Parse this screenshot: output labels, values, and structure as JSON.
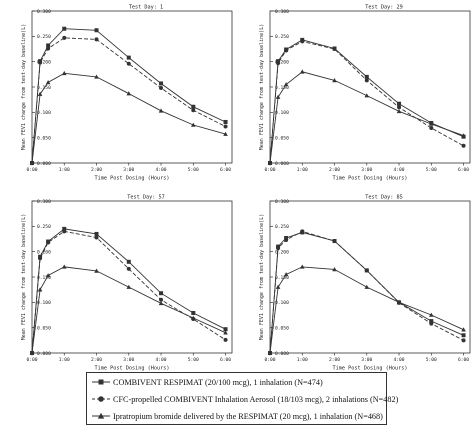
{
  "chart_data": [
    {
      "type": "line",
      "title": "Test Day: 1",
      "xlabel": "Time Post Dosing (Hours)",
      "ylabel": "Mean FEV1 change from test-day baseline(L)",
      "x_tick_labels": [
        "0:00",
        "1:00",
        "2:00",
        "3:00",
        "4:00",
        "5:00",
        "6:00"
      ],
      "y_tick_labels": [
        "0.000",
        "0.050",
        "0.100",
        "0.150",
        "0.200",
        "0.250",
        "0.300"
      ],
      "xlim": [
        0,
        6.2
      ],
      "ylim": [
        0,
        0.3
      ],
      "x": [
        0,
        0.25,
        0.5,
        1,
        2,
        3,
        4,
        5,
        6
      ],
      "series": [
        {
          "name": "COMBIVENT RESPIMAT (20/100 mcg), 1 inhalation (N=474)",
          "marker": "square",
          "dash": "solid",
          "values": [
            0,
            0.201,
            0.232,
            0.265,
            0.262,
            0.208,
            0.157,
            0.111,
            0.081
          ]
        },
        {
          "name": "CFC-propelled COMBIVENT Inhalation Aerosol (18/103 mcg), 2 inhalations (N=482)",
          "marker": "circle",
          "dash": "dashed",
          "values": [
            0,
            0.198,
            0.226,
            0.247,
            0.244,
            0.196,
            0.148,
            0.104,
            0.072
          ]
        },
        {
          "name": "Ipratropium bromide delivered by the RESPIMAT (20 mcg), 1 inhalation (N=468)",
          "marker": "triangle",
          "dash": "solid",
          "values": [
            0,
            0.136,
            0.159,
            0.177,
            0.17,
            0.137,
            0.103,
            0.075,
            0.057
          ]
        }
      ]
    },
    {
      "type": "line",
      "title": "Test Day: 29",
      "xlabel": "Time Post Dosing (Hours)",
      "ylabel": "Mean FEV1 change from test-day baseline(L)",
      "x_tick_labels": [
        "0:00",
        "1:00",
        "2:00",
        "3:00",
        "4:00",
        "5:00",
        "6:00"
      ],
      "y_tick_labels": [
        "0.000",
        "0.050",
        "0.100",
        "0.150",
        "0.200",
        "0.250",
        "0.300"
      ],
      "xlim": [
        0,
        6.2
      ],
      "ylim": [
        0,
        0.3
      ],
      "x": [
        0,
        0.25,
        0.5,
        1,
        2,
        3,
        4,
        5,
        6
      ],
      "series": [
        {
          "name": "COMBIVENT RESPIMAT (20/100 mcg), 1 inhalation (N=474)",
          "marker": "square",
          "dash": "solid",
          "values": [
            0,
            0.201,
            0.224,
            0.243,
            0.226,
            0.17,
            0.117,
            0.079,
            0.052
          ]
        },
        {
          "name": "CFC-propelled COMBIVENT Inhalation Aerosol (18/103 mcg), 2 inhalations (N=482)",
          "marker": "circle",
          "dash": "dashed",
          "values": [
            0,
            0.197,
            0.222,
            0.24,
            0.225,
            0.163,
            0.11,
            0.069,
            0.034
          ]
        },
        {
          "name": "Ipratropium bromide delivered by the RESPIMAT (20 mcg), 1 inhalation (N=468)",
          "marker": "triangle",
          "dash": "solid",
          "values": [
            0,
            0.13,
            0.155,
            0.18,
            0.163,
            0.133,
            0.102,
            0.077,
            0.054
          ]
        }
      ]
    },
    {
      "type": "line",
      "title": "Test Day: 57",
      "xlabel": "Time Post Dosing (Hours)",
      "ylabel": "Mean FEV1 change from test-day baseline(L)",
      "x_tick_labels": [
        "0:00",
        "1:00",
        "2:00",
        "3:00",
        "4:00",
        "5:00",
        "6:00"
      ],
      "y_tick_labels": [
        "0.000",
        "0.050",
        "0.100",
        "0.150",
        "0.200",
        "0.250",
        "0.300"
      ],
      "xlim": [
        0,
        6.2
      ],
      "ylim": [
        0,
        0.3
      ],
      "x": [
        0,
        0.25,
        0.5,
        1,
        2,
        3,
        4,
        5,
        6
      ],
      "series": [
        {
          "name": "COMBIVENT RESPIMAT (20/100 mcg), 1 inhalation (N=474)",
          "marker": "square",
          "dash": "solid",
          "values": [
            0,
            0.19,
            0.22,
            0.245,
            0.235,
            0.18,
            0.118,
            0.079,
            0.047
          ]
        },
        {
          "name": "CFC-propelled COMBIVENT Inhalation Aerosol (18/103 mcg), 2 inhalations (N=482)",
          "marker": "circle",
          "dash": "dashed",
          "values": [
            0,
            0.187,
            0.218,
            0.24,
            0.228,
            0.166,
            0.105,
            0.067,
            0.026
          ]
        },
        {
          "name": "Ipratropium bromide delivered by the RESPIMAT (20 mcg), 1 inhalation (N=468)",
          "marker": "triangle",
          "dash": "solid",
          "values": [
            0,
            0.125,
            0.153,
            0.17,
            0.162,
            0.13,
            0.098,
            0.069,
            0.04
          ]
        }
      ]
    },
    {
      "type": "line",
      "title": "Test Day: 85",
      "xlabel": "Time Post Dosing (Hours)",
      "ylabel": "Mean FEV1 change from test-day baseline(L)",
      "x_tick_labels": [
        "0:00",
        "1:00",
        "2:00",
        "3:00",
        "4:00",
        "5:00",
        "6:00"
      ],
      "y_tick_labels": [
        "0.000",
        "0.050",
        "0.100",
        "0.150",
        "0.200",
        "0.250",
        "0.300"
      ],
      "xlim": [
        0,
        6.2
      ],
      "ylim": [
        0,
        0.3
      ],
      "x": [
        0,
        0.25,
        0.5,
        1,
        2,
        3,
        4,
        5,
        6
      ],
      "series": [
        {
          "name": "COMBIVENT RESPIMAT (20/100 mcg), 1 inhalation (N=474)",
          "marker": "square",
          "dash": "solid",
          "values": [
            0,
            0.21,
            0.227,
            0.238,
            0.221,
            0.163,
            0.1,
            0.063,
            0.035
          ]
        },
        {
          "name": "CFC-propelled COMBIVENT Inhalation Aerosol (18/103 mcg), 2 inhalations (N=482)",
          "marker": "circle",
          "dash": "dashed",
          "values": [
            0,
            0.207,
            0.223,
            0.24,
            0.221,
            0.163,
            0.099,
            0.058,
            0.025
          ]
        },
        {
          "name": "Ipratropium bromide delivered by the RESPIMAT (20 mcg), 1 inhalation (N=468)",
          "marker": "triangle",
          "dash": "solid",
          "values": [
            0,
            0.13,
            0.155,
            0.17,
            0.165,
            0.13,
            0.1,
            0.075,
            0.046
          ]
        }
      ]
    }
  ],
  "legend": {
    "entries": [
      "COMBIVENT RESPIMAT (20/100 mcg), 1 inhalation (N=474)",
      "CFC-propelled COMBIVENT Inhalation Aerosol (18/103 mcg), 2 inhalations (N=482)",
      "Ipratropium bromide delivered by the RESPIMAT (20 mcg), 1 inhalation (N=468)"
    ]
  }
}
